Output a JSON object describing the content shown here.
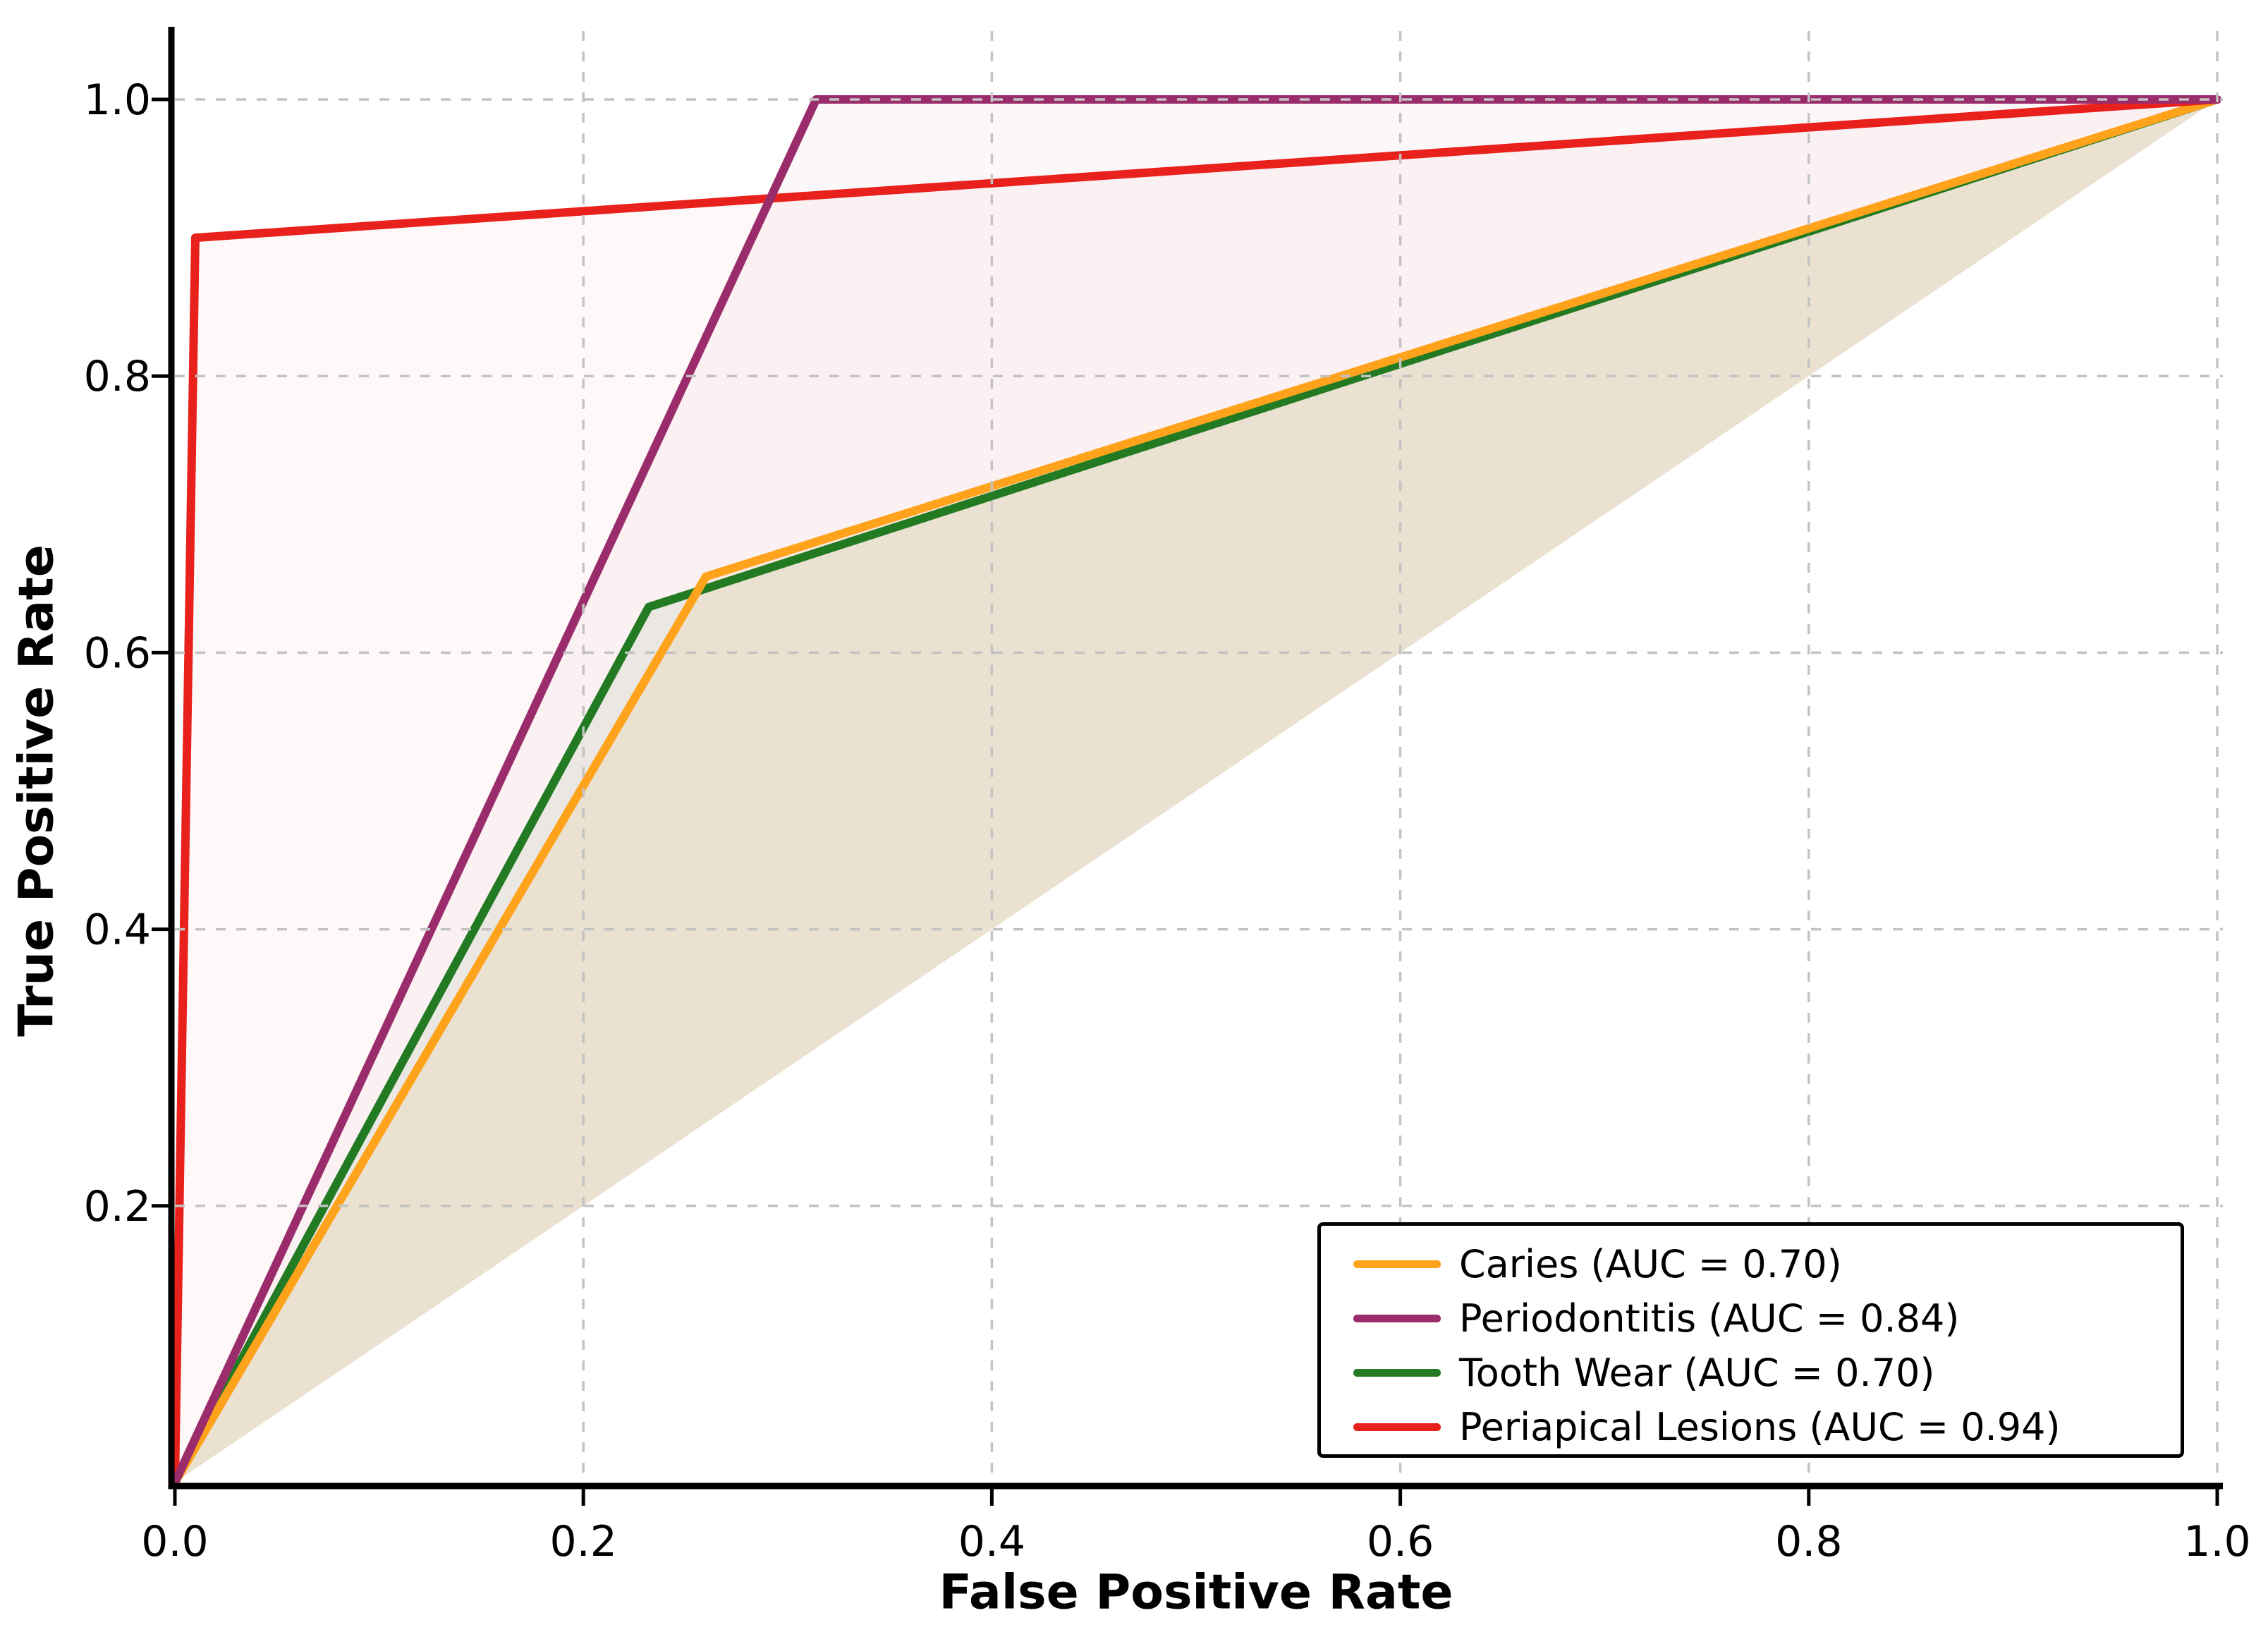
{
  "chart_data": {
    "type": "line",
    "title": "",
    "xlabel": "False Positive Rate",
    "ylabel": "True Positive Rate",
    "xlim": [
      0.0,
      1.0
    ],
    "ylim": [
      0.0,
      1.0
    ],
    "xticks": [
      0.0,
      0.2,
      0.4,
      0.6,
      0.8,
      1.0
    ],
    "yticks": [
      0.2,
      0.4,
      0.6,
      0.8,
      1.0
    ],
    "grid": true,
    "grid_style": "dashed",
    "legend_position": "lower right",
    "fill_baseline": "diagonal",
    "series": [
      {
        "name": "caries",
        "label": "Caries (AUC = 0.70)",
        "auc": 0.7,
        "color": "#FFA21C",
        "fill_opacity": 0.09,
        "points": [
          [
            0.0,
            0.0
          ],
          [
            0.26,
            0.655
          ],
          [
            1.0,
            1.0
          ]
        ]
      },
      {
        "name": "periodontitis",
        "label": "Periodontitis (AUC = 0.84)",
        "auc": 0.84,
        "color": "#9B2C6B",
        "fill_opacity": 0.03,
        "points": [
          [
            0.0,
            0.0
          ],
          [
            0.314,
            1.0
          ],
          [
            1.0,
            1.0
          ]
        ]
      },
      {
        "name": "tooth-wear",
        "label": "Tooth Wear (AUC = 0.70)",
        "auc": 0.7,
        "color": "#227A22",
        "fill_opacity": 0.07,
        "points": [
          [
            0.0,
            0.0
          ],
          [
            0.232,
            0.633
          ],
          [
            1.0,
            1.0
          ]
        ]
      },
      {
        "name": "periapical-lesions",
        "label": "Periapical Lesions (AUC = 0.94)",
        "auc": 0.94,
        "color": "#E8211D",
        "fill_opacity": 0.03,
        "points": [
          [
            0.0,
            0.0
          ],
          [
            0.01,
            0.9
          ],
          [
            1.0,
            1.0
          ]
        ]
      }
    ]
  },
  "colors": {
    "background": "#FFFFFF",
    "grid": "#C3C3C3",
    "axis": "#000000",
    "tick_label": "#000000",
    "legend_bg": "#FFFFFF",
    "legend_border": "#000000"
  }
}
